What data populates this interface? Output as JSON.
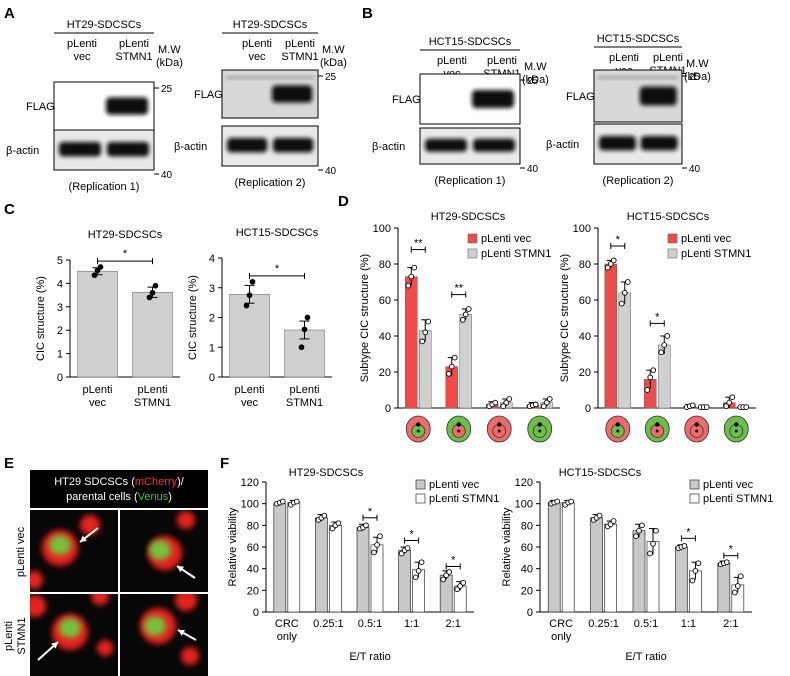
{
  "colors": {
    "vec_red": "#f04b4b",
    "stmn1_gray": "#d0d0d0",
    "bar_gray": "#cfcfcf",
    "cell_red": "#ef6a6a",
    "cell_green": "#6cbf4b",
    "venus": "#3ec43e",
    "mcherry": "#ff3030"
  },
  "panels": {
    "A": "A",
    "B": "B",
    "C": "C",
    "D": "D",
    "E": "E",
    "F": "F"
  },
  "blots": [
    {
      "title": "HT29-SDCSCs",
      "lane1": [
        "pLenti",
        "vec"
      ],
      "lane2": [
        "pLenti",
        "STMN1"
      ],
      "mw": [
        "M.W",
        "(kDa)"
      ],
      "row1": "FLAG",
      "row2": "β-actin",
      "m25": "25",
      "m40": "40",
      "caption": "(Replication 1)"
    },
    {
      "title": "HT29-SDCSCs",
      "lane1": [
        "pLenti",
        "vec"
      ],
      "lane2": [
        "pLenti",
        "STMN1"
      ],
      "mw": [
        "M.W",
        "(kDa)"
      ],
      "row1": "FLAG",
      "row2": "β-actin",
      "m25": "25",
      "m40": "40",
      "caption": "(Replication 2)"
    },
    {
      "title": "HCT15-SDCSCs",
      "lane1": [
        "pLenti",
        "vec"
      ],
      "lane2": [
        "pLenti",
        "STMN1"
      ],
      "mw": [
        "M.W",
        "(kDa)"
      ],
      "row1": "FLAG",
      "row2": "β-actin",
      "m25": "25",
      "m40": "40",
      "caption": "(Replication 1)"
    },
    {
      "title": "HCT15-SDCSCs",
      "lane1": [
        "pLenti",
        "vec"
      ],
      "lane2": [
        "pLenti",
        "STMN1"
      ],
      "mw": [
        "M.W",
        "(kDa)"
      ],
      "row1": "FLAG",
      "row2": "β-actin",
      "m25": "25",
      "m40": "40",
      "caption": "(Replication 2)"
    }
  ],
  "microscopy": {
    "title_line1_a": "HT29 SDCSCs (",
    "title_line1_b": "mCherry",
    "title_line1_c": ")/",
    "title_line2_a": "parental cells (",
    "title_line2_b": "Venus",
    "title_line2_c": ")",
    "row1_label": "pLenti vec",
    "row2_label_1": "pLenti",
    "row2_label_2": "STMN1"
  },
  "chart_data": [
    {
      "panel": "C",
      "type": "bar",
      "title": "HT29-SDCSCs",
      "ylabel": "CIC structure (%)",
      "categories": [
        [
          "pLenti",
          "vec"
        ],
        [
          "pLenti",
          "STMN1"
        ]
      ],
      "values": [
        4.52,
        3.62
      ],
      "errors": [
        0.15,
        0.22
      ],
      "points": [
        [
          4.35,
          4.55,
          4.7
        ],
        [
          3.4,
          3.6,
          3.9
        ]
      ],
      "ylim": [
        0,
        5
      ],
      "yticks": [
        "0",
        "1",
        "2",
        "3",
        "4",
        "5"
      ],
      "significance": [
        {
          "from": 0,
          "to": 1,
          "level": 4.95,
          "label": "*"
        }
      ]
    },
    {
      "panel": "C",
      "type": "bar",
      "title": "HCT15-SDCSCs",
      "ylabel": "CIC structure (%)",
      "categories": [
        [
          "pLenti",
          "vec"
        ],
        [
          "pLenti",
          "STMN1"
        ]
      ],
      "values": [
        2.78,
        1.58
      ],
      "errors": [
        0.3,
        0.3
      ],
      "points": [
        [
          2.4,
          2.75,
          3.2
        ],
        [
          1.0,
          1.6,
          2.0
        ]
      ],
      "ylim": [
        0,
        4
      ],
      "yticks": [
        "0",
        "1",
        "2",
        "3",
        "4"
      ],
      "significance": [
        {
          "from": 0,
          "to": 1,
          "level": 3.4,
          "label": "*"
        }
      ]
    },
    {
      "panel": "D",
      "type": "bar",
      "title": "HT29-SDCSCs",
      "ylabel": "Subtype CIC structure (%)",
      "legend": [
        "pLenti vec",
        "pLenti STMN1"
      ],
      "legend_position": "top-right",
      "categories": [
        "red host / green inner",
        "green host / red inner",
        "red host / red inner",
        "green host / green inner"
      ],
      "series": [
        {
          "name": "pLenti vec",
          "values": [
            73,
            23,
            2,
            1.5
          ],
          "errors": [
            5,
            5,
            1.5,
            1.5
          ],
          "points": [
            [
              68,
              73,
              78
            ],
            [
              19,
              23,
              28
            ],
            [
              1,
              2,
              3
            ],
            [
              1,
              1.5,
              2
            ]
          ]
        },
        {
          "name": "pLenti STMN1",
          "values": [
            43,
            52,
            3,
            3
          ],
          "errors": [
            6,
            3,
            2,
            2
          ],
          "points": [
            [
              37,
              42,
              48
            ],
            [
              49,
              52,
              55
            ],
            [
              1,
              3,
              5
            ],
            [
              1,
              3,
              5
            ]
          ]
        }
      ],
      "ylim": [
        0,
        100
      ],
      "yticks": [
        "0",
        "20",
        "40",
        "60",
        "80",
        "100"
      ],
      "significance": [
        {
          "category": 0,
          "label": "**",
          "level": 88
        },
        {
          "category": 1,
          "label": "**",
          "level": 63
        }
      ]
    },
    {
      "panel": "D",
      "type": "bar",
      "title": "HCT15-SDCSCs",
      "ylabel": "Subtype CIC structure (%)",
      "legend": [
        "pLenti vec",
        "pLenti STMN1"
      ],
      "legend_position": "top-right",
      "categories": [
        "red host / green inner",
        "green host / red inner",
        "red host / red inner",
        "green host / green inner"
      ],
      "series": [
        {
          "name": "pLenti vec",
          "values": [
            80,
            16,
            1,
            3
          ],
          "errors": [
            2,
            5,
            1,
            3
          ],
          "points": [
            [
              78,
              80,
              82
            ],
            [
              10,
              17,
              21
            ],
            [
              0.5,
              1,
              1.5
            ],
            [
              1,
              3,
              6
            ]
          ]
        },
        {
          "name": "pLenti STMN1",
          "values": [
            64,
            35,
            0.5,
            0.5
          ],
          "errors": [
            6,
            5,
            0.5,
            0.5
          ],
          "points": [
            [
              58,
              64,
              70
            ],
            [
              31,
              35,
              40
            ],
            [
              0.5,
              0.5,
              0.5
            ],
            [
              0.5,
              0.5,
              0.5
            ]
          ]
        }
      ],
      "ylim": [
        0,
        100
      ],
      "yticks": [
        "0",
        "20",
        "40",
        "60",
        "80",
        "100"
      ],
      "significance": [
        {
          "category": 0,
          "label": "*",
          "level": 90
        },
        {
          "category": 1,
          "label": "*",
          "level": 47
        }
      ]
    },
    {
      "panel": "F",
      "type": "bar",
      "title": "HT29-SDCSCs",
      "ylabel": "Relative viability",
      "xlabel": "E/T ratio",
      "legend": [
        "pLenti vec",
        "pLenti STMN1"
      ],
      "legend_position": "top-right",
      "categories": [
        [
          "CRC",
          "only"
        ],
        [
          "0.25:1"
        ],
        [
          "0.5:1"
        ],
        [
          "1:1"
        ],
        [
          "2:1"
        ]
      ],
      "series": [
        {
          "name": "pLenti vec",
          "values": [
            100,
            87,
            78,
            57,
            34
          ],
          "errors": [
            2,
            3,
            3,
            3,
            4
          ],
          "points": [
            [
              100,
              101,
              102
            ],
            [
              85,
              87,
              89
            ],
            [
              77,
              78,
              80
            ],
            [
              54,
              57,
              59
            ],
            [
              30,
              34,
              37
            ]
          ]
        },
        {
          "name": "pLenti STMN1",
          "values": [
            101,
            80,
            62,
            39,
            24
          ],
          "errors": [
            2,
            3,
            7,
            7,
            4
          ],
          "points": [
            [
              99,
              101,
              102
            ],
            [
              77,
              80,
              82
            ],
            [
              55,
              62,
              70
            ],
            [
              32,
              38,
              46
            ],
            [
              21,
              24,
              27
            ]
          ]
        }
      ],
      "ylim": [
        0,
        120
      ],
      "yticks": [
        "0",
        "20",
        "40",
        "60",
        "80",
        "100",
        "120"
      ],
      "significance": [
        {
          "category": 2,
          "label": "*",
          "level": 87
        },
        {
          "category": 3,
          "label": "*",
          "level": 66
        },
        {
          "category": 4,
          "label": "*",
          "level": 42
        }
      ]
    },
    {
      "panel": "F",
      "type": "bar",
      "title": "HCT15-SDCSCs",
      "ylabel": "Relative viability",
      "xlabel": "E/T ratio",
      "legend": [
        "pLenti vec",
        "pLenti STMN1"
      ],
      "legend_position": "top-right",
      "categories": [
        [
          "CRC",
          "only"
        ],
        [
          "0.25:1"
        ],
        [
          "0.5:1"
        ],
        [
          "1:1"
        ],
        [
          "2:1"
        ]
      ],
      "series": [
        {
          "name": "pLenti vec",
          "values": [
            101,
            87,
            75,
            60,
            45
          ],
          "errors": [
            2,
            3,
            6,
            2,
            2
          ],
          "points": [
            [
              100,
              101,
              102
            ],
            [
              85,
              87,
              89
            ],
            [
              70,
              75,
              80
            ],
            [
              59,
              60,
              61
            ],
            [
              44,
              45,
              46
            ]
          ]
        },
        {
          "name": "pLenti STMN1",
          "values": [
            101,
            81,
            65,
            38,
            25
          ],
          "errors": [
            2,
            3,
            12,
            8,
            7
          ],
          "points": [
            [
              99,
              101,
              102
            ],
            [
              79,
              81,
              84
            ],
            [
              54,
              63,
              75
            ],
            [
              29,
              38,
              45
            ],
            [
              18,
              24,
              33
            ]
          ]
        }
      ],
      "ylim": [
        0,
        120
      ],
      "yticks": [
        "0",
        "20",
        "40",
        "60",
        "80",
        "100",
        "120"
      ],
      "significance": [
        {
          "category": 3,
          "label": "*",
          "level": 68
        },
        {
          "category": 4,
          "label": "*",
          "level": 52
        }
      ]
    }
  ]
}
